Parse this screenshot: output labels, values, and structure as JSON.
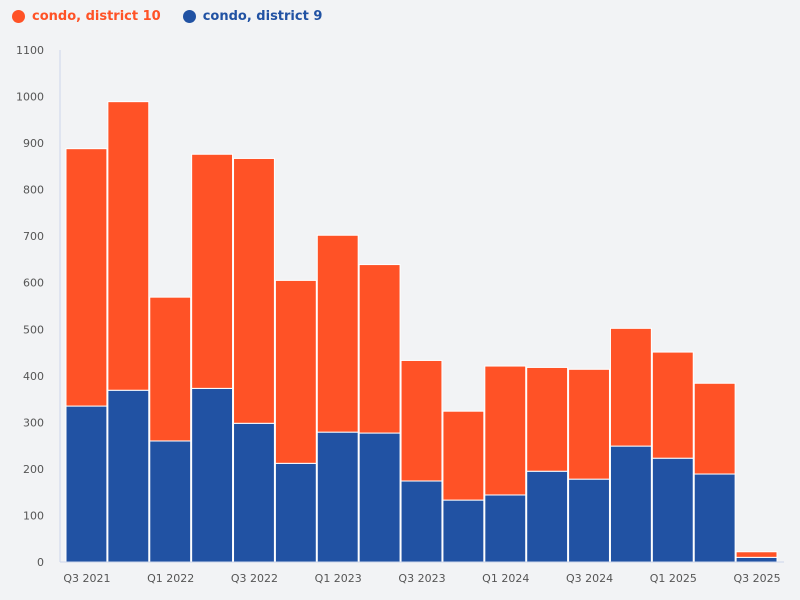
{
  "chart_data": {
    "type": "bar",
    "stacked": true,
    "categories": [
      "Q3 2021",
      "Q4 2021",
      "Q1 2022",
      "Q2 2022",
      "Q3 2022",
      "Q4 2022",
      "Q1 2023",
      "Q2 2023",
      "Q3 2023",
      "Q4 2023",
      "Q1 2024",
      "Q2 2024",
      "Q3 2024",
      "Q4 2024",
      "Q1 2025",
      "Q2 2025",
      "Q3 2025"
    ],
    "x_tick_labels": [
      "Q3 2021",
      "Q1 2022",
      "Q3 2022",
      "Q1 2023",
      "Q3 2023",
      "Q1 2024",
      "Q3 2024",
      "Q1 2025",
      "Q3 2025"
    ],
    "series": [
      {
        "name": "condo, district 9",
        "color": "#2152a3",
        "values": [
          335,
          369,
          260,
          373,
          298,
          212,
          279,
          277,
          174,
          133,
          144,
          195,
          178,
          249,
          223,
          189,
          10
        ]
      },
      {
        "name": "condo, district 10",
        "color": "#ff5226",
        "values": [
          553,
          620,
          309,
          503,
          569,
          393,
          423,
          362,
          259,
          191,
          277,
          223,
          236,
          253,
          228,
          195,
          12
        ]
      }
    ],
    "legend_order": [
      "condo, district 10",
      "condo, district 9"
    ],
    "ylim": [
      0,
      1100
    ],
    "y_ticks": [
      0,
      100,
      200,
      300,
      400,
      500,
      600,
      700,
      800,
      900,
      1000,
      1100
    ],
    "grid": false,
    "legend_position": "top-left",
    "xlabel": "",
    "ylabel": "",
    "title": ""
  }
}
